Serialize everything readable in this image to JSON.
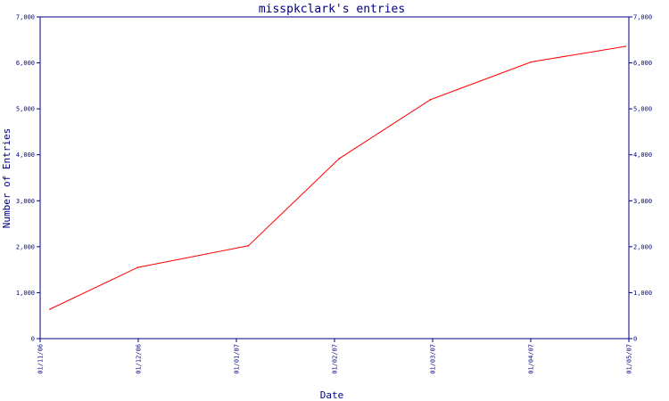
{
  "chart_data": {
    "type": "line",
    "title": "misspkclark's entries",
    "xlabel": "Date",
    "ylabel": "Number of Entries",
    "x_ticks": [
      "01/11/06",
      "01/12/06",
      "01/01/07",
      "01/02/07",
      "01/03/07",
      "01/04/07",
      "01/05/07"
    ],
    "xlim": [
      "2006-11-01",
      "2007-05-01"
    ],
    "ylim": [
      0,
      7000
    ],
    "y_ticks": [
      0,
      1000,
      2000,
      3000,
      4000,
      5000,
      6000,
      7000
    ],
    "y_tick_labels": [
      "0",
      "1,000",
      "2,000",
      "3,000",
      "4,000",
      "5,000",
      "6,000",
      "7,000"
    ],
    "grid": false,
    "legend": "none",
    "y_axis_sides": [
      "left",
      "right"
    ],
    "series": [
      {
        "color": "#ff0000",
        "x": [
          "2006-11-04",
          "2006-12-01",
          "2007-01-04",
          "2007-02-01",
          "2007-03-01",
          "2007-04-01",
          "2007-04-30"
        ],
        "y": [
          640,
          1550,
          2020,
          3920,
          5200,
          6020,
          6360
        ]
      }
    ],
    "colors": {
      "axis": "#000080",
      "line": "#ff0000",
      "background": "#ffffff"
    }
  }
}
